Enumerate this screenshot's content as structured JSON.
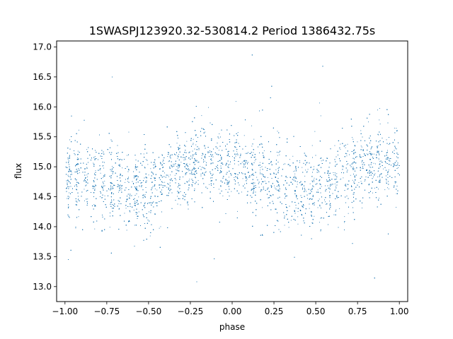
{
  "chart_data": {
    "type": "scatter",
    "title": "1SWASPJ123920.32-530814.2 Period 1386432.75s",
    "xlabel": "phase",
    "ylabel": "flux",
    "xlim": [
      -1.05,
      1.05
    ],
    "ylim": [
      12.75,
      17.1
    ],
    "x_ticks": [
      "−1.00",
      "−0.75",
      "−0.50",
      "−0.25",
      "0.00",
      "0.25",
      "0.50",
      "0.75",
      "1.00"
    ],
    "x_tick_values": [
      -1.0,
      -0.75,
      -0.5,
      -0.25,
      0.0,
      0.25,
      0.5,
      0.75,
      1.0
    ],
    "y_ticks": [
      "13.0",
      "13.5",
      "14.0",
      "14.5",
      "15.0",
      "15.5",
      "16.0",
      "16.5",
      "17.0"
    ],
    "y_tick_values": [
      13.0,
      13.5,
      14.0,
      14.5,
      15.0,
      15.5,
      16.0,
      16.5,
      17.0
    ],
    "grid": false,
    "marker_color": "#1f77b4",
    "series": [
      {
        "model": {
          "description_points": [
            {
              "phase": -1.0,
              "flux_center": 14.85
            },
            {
              "phase": -0.75,
              "flux_center": 14.7
            },
            {
              "phase": -0.6,
              "flux_center": 14.6
            },
            {
              "phase": -0.5,
              "flux_center": 14.65
            },
            {
              "phase": -0.35,
              "flux_center": 14.9
            },
            {
              "phase": -0.15,
              "flux_center": 15.1
            },
            {
              "phase": 0.0,
              "flux_center": 15.0
            },
            {
              "phase": 0.15,
              "flux_center": 14.85
            },
            {
              "phase": 0.3,
              "flux_center": 14.65
            },
            {
              "phase": 0.4,
              "flux_center": 14.6
            },
            {
              "phase": 0.55,
              "flux_center": 14.65
            },
            {
              "phase": 0.7,
              "flux_center": 14.9
            },
            {
              "phase": 0.85,
              "flux_center": 15.1
            },
            {
              "phase": 1.0,
              "flux_center": 15.0
            }
          ],
          "n_points": 9000,
          "scatter_sigma": 0.33,
          "outlier_range": [
            13.0,
            16.9
          ]
        }
      }
    ]
  }
}
